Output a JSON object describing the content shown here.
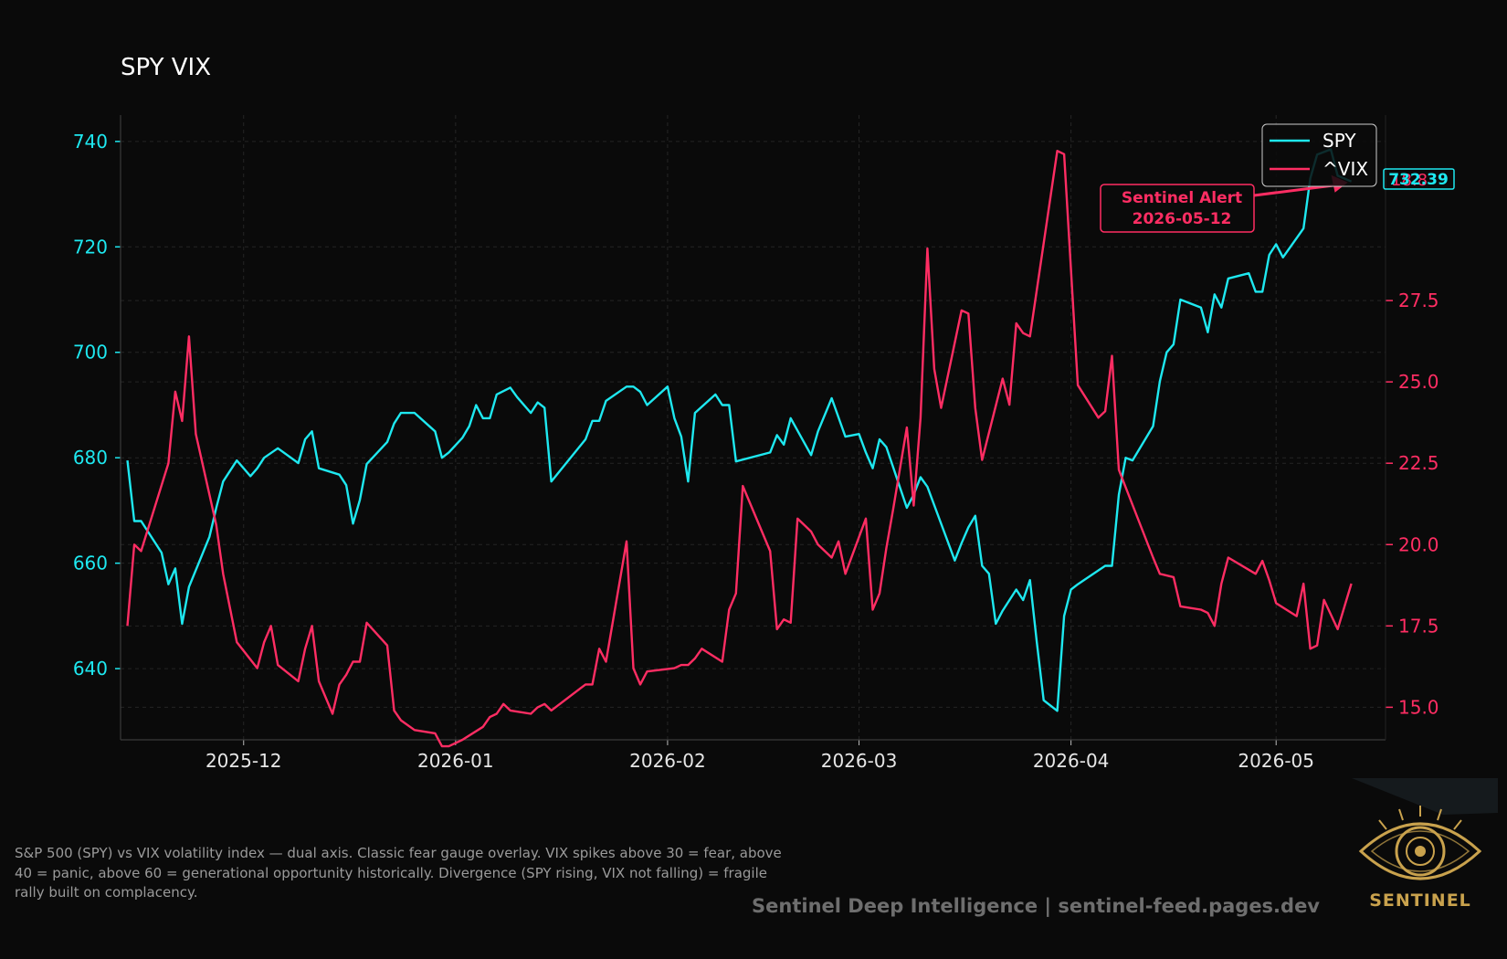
{
  "colors": {
    "background": "#0a0a0a",
    "spy": "#1ee8f0",
    "vix": "#ff2d63",
    "grid": "#252525",
    "text": "#e6e6e6",
    "logo_gold": "#c9a24d"
  },
  "chart_data": {
    "type": "line",
    "title": "SPY VIX",
    "dual_axis": true,
    "legend_position": "top-right",
    "grid": true,
    "x_ticks": [
      "2025-12",
      "2026-01",
      "2026-02",
      "2026-03",
      "2026-04",
      "2026-05"
    ],
    "xlim": [
      "2025-11-13",
      "2026-05-17"
    ],
    "y_left": {
      "color": "#1ee8f0",
      "ylim": [
        626.5,
        745
      ],
      "ticks": [
        640,
        660,
        680,
        700,
        720,
        740
      ]
    },
    "y_right": {
      "color": "#ff2d63",
      "ylim": [
        14.0,
        33.2
      ],
      "ticks": [
        "15.0",
        "17.5",
        "20.0",
        "22.5",
        "25.0",
        "27.5"
      ]
    },
    "series": [
      {
        "name": "SPY",
        "axis": "left",
        "color": "#1ee8f0",
        "last_value_label": "732.39",
        "x": [
          "2025-11-14",
          "2025-11-15",
          "2025-11-16",
          "2025-11-19",
          "2025-11-20",
          "2025-11-21",
          "2025-11-22",
          "2025-11-23",
          "2025-11-26",
          "2025-11-27",
          "2025-11-28",
          "2025-11-30",
          "2025-12-02",
          "2025-12-03",
          "2025-12-04",
          "2025-12-06",
          "2025-12-09",
          "2025-12-10",
          "2025-12-11",
          "2025-12-12",
          "2025-12-15",
          "2025-12-16",
          "2025-12-17",
          "2025-12-18",
          "2025-12-19",
          "2025-12-22",
          "2025-12-23",
          "2025-12-24",
          "2025-12-26",
          "2025-12-29",
          "2025-12-30",
          "2025-12-31",
          "2026-01-02",
          "2026-01-03",
          "2026-01-04",
          "2026-01-05",
          "2026-01-06",
          "2026-01-07",
          "2026-01-09",
          "2026-01-10",
          "2026-01-12",
          "2026-01-13",
          "2026-01-14",
          "2026-01-15",
          "2026-01-20",
          "2026-01-21",
          "2026-01-22",
          "2026-01-23",
          "2026-01-26",
          "2026-01-27",
          "2026-01-28",
          "2026-01-29",
          "2026-02-01",
          "2026-02-02",
          "2026-02-03",
          "2026-02-04",
          "2026-02-05",
          "2026-02-08",
          "2026-02-09",
          "2026-02-10",
          "2026-02-11",
          "2026-02-16",
          "2026-02-17",
          "2026-02-18",
          "2026-02-19",
          "2026-02-22",
          "2026-02-23",
          "2026-02-25",
          "2026-02-27",
          "2026-03-01",
          "2026-03-02",
          "2026-03-03",
          "2026-03-04",
          "2026-03-05",
          "2026-03-08",
          "2026-03-09",
          "2026-03-10",
          "2026-03-11",
          "2026-03-14",
          "2026-03-15",
          "2026-03-16",
          "2026-03-17",
          "2026-03-18",
          "2026-03-19",
          "2026-03-20",
          "2026-03-21",
          "2026-03-22",
          "2026-03-24",
          "2026-03-25",
          "2026-03-26",
          "2026-03-27",
          "2026-03-28",
          "2026-03-30",
          "2026-03-31",
          "2026-04-01",
          "2026-04-02",
          "2026-04-06",
          "2026-04-07",
          "2026-04-08",
          "2026-04-09",
          "2026-04-10",
          "2026-04-13",
          "2026-04-14",
          "2026-04-15",
          "2026-04-16",
          "2026-04-17",
          "2026-04-20",
          "2026-04-21",
          "2026-04-22",
          "2026-04-23",
          "2026-04-24",
          "2026-04-27",
          "2026-04-28",
          "2026-04-29",
          "2026-04-30",
          "2026-05-01",
          "2026-05-02",
          "2026-05-05",
          "2026-05-06",
          "2026-05-07",
          "2026-05-09",
          "2026-05-10",
          "2026-05-12"
        ],
        "y": [
          679.5,
          668.0,
          668.0,
          662.0,
          656.0,
          659.0,
          648.5,
          655.5,
          665.0,
          670.5,
          675.5,
          679.5,
          676.5,
          678.0,
          680.0,
          681.8,
          679.0,
          683.5,
          685.0,
          678.0,
          676.8,
          674.8,
          667.5,
          672.0,
          678.8,
          683.0,
          686.5,
          688.5,
          688.5,
          685.0,
          680.0,
          681.0,
          683.8,
          686.0,
          690.0,
          687.5,
          687.5,
          692.0,
          693.3,
          691.5,
          688.5,
          690.5,
          689.5,
          675.5,
          683.5,
          687.0,
          687.0,
          690.8,
          693.5,
          693.5,
          692.5,
          690.0,
          693.5,
          687.5,
          684.0,
          675.5,
          688.5,
          692.0,
          690.0,
          690.0,
          679.3,
          681.0,
          684.3,
          682.5,
          687.5,
          680.5,
          685.0,
          691.3,
          684.0,
          684.5,
          681.0,
          678.0,
          683.5,
          682.0,
          670.5,
          673.0,
          676.3,
          674.5,
          664.0,
          660.5,
          663.8,
          666.8,
          669.0,
          659.5,
          658.0,
          648.5,
          651.0,
          655.0,
          653.0,
          656.8,
          645.0,
          634.0,
          632.0,
          650.0,
          655.0,
          656.0,
          659.5,
          659.5,
          673.0,
          680.0,
          679.5,
          686.0,
          694.5,
          700.0,
          701.5,
          710.0,
          708.5,
          703.8,
          711.0,
          708.5,
          714.0,
          715.0,
          711.5,
          711.5,
          718.5,
          720.5,
          718.0,
          723.5,
          733.0,
          737.5,
          738.5,
          733.5,
          732.4
        ]
      },
      {
        "name": "^VIX",
        "axis": "right",
        "color": "#ff2d63",
        "last_value_label": "18.8",
        "x": [
          "2025-11-14",
          "2025-11-15",
          "2025-11-16",
          "2025-11-20",
          "2025-11-21",
          "2025-11-22",
          "2025-11-23",
          "2025-11-24",
          "2025-11-27",
          "2025-11-28",
          "2025-11-30",
          "2025-12-03",
          "2025-12-04",
          "2025-12-05",
          "2025-12-06",
          "2025-12-09",
          "2025-12-10",
          "2025-12-11",
          "2025-12-12",
          "2025-12-14",
          "2025-12-15",
          "2025-12-16",
          "2025-12-17",
          "2025-12-18",
          "2025-12-19",
          "2025-12-22",
          "2025-12-23",
          "2025-12-24",
          "2025-12-26",
          "2025-12-29",
          "2025-12-30",
          "2025-12-31",
          "2026-01-02",
          "2026-01-05",
          "2026-01-06",
          "2026-01-07",
          "2026-01-08",
          "2026-01-09",
          "2026-01-12",
          "2026-01-13",
          "2026-01-14",
          "2026-01-15",
          "2026-01-20",
          "2026-01-21",
          "2026-01-22",
          "2026-01-23",
          "2026-01-26",
          "2026-01-27",
          "2026-01-28",
          "2026-01-29",
          "2026-02-02",
          "2026-02-03",
          "2026-02-04",
          "2026-02-05",
          "2026-02-06",
          "2026-02-09",
          "2026-02-10",
          "2026-02-11",
          "2026-02-12",
          "2026-02-16",
          "2026-02-17",
          "2026-02-18",
          "2026-02-19",
          "2026-02-20",
          "2026-02-22",
          "2026-02-23",
          "2026-02-25",
          "2026-02-26",
          "2026-02-27",
          "2026-03-02",
          "2026-03-03",
          "2026-03-04",
          "2026-03-05",
          "2026-03-06",
          "2026-03-08",
          "2026-03-09",
          "2026-03-10",
          "2026-03-11",
          "2026-03-12",
          "2026-03-13",
          "2026-03-16",
          "2026-03-17",
          "2026-03-18",
          "2026-03-19",
          "2026-03-22",
          "2026-03-23",
          "2026-03-24",
          "2026-03-25",
          "2026-03-26",
          "2026-03-30",
          "2026-03-31",
          "2026-04-02",
          "2026-04-05",
          "2026-04-06",
          "2026-04-07",
          "2026-04-08",
          "2026-04-13",
          "2026-04-14",
          "2026-04-16",
          "2026-04-17",
          "2026-04-20",
          "2026-04-21",
          "2026-04-22",
          "2026-04-23",
          "2026-04-24",
          "2026-04-28",
          "2026-04-29",
          "2026-04-30",
          "2026-05-01",
          "2026-05-04",
          "2026-05-05",
          "2026-05-06",
          "2026-05-07",
          "2026-05-08",
          "2026-05-10",
          "2026-05-12"
        ],
        "y": [
          17.5,
          20.0,
          19.8,
          22.5,
          24.7,
          23.8,
          26.4,
          23.4,
          20.6,
          19.1,
          17.0,
          16.2,
          17.0,
          17.5,
          16.3,
          15.8,
          16.8,
          17.5,
          15.8,
          14.8,
          15.7,
          16.0,
          16.4,
          16.4,
          17.6,
          16.9,
          14.9,
          14.6,
          14.3,
          14.2,
          13.8,
          13.8,
          14.0,
          14.4,
          14.7,
          14.8,
          15.1,
          14.9,
          14.8,
          15.0,
          15.1,
          14.9,
          15.7,
          15.7,
          16.8,
          16.4,
          20.1,
          16.2,
          15.7,
          16.1,
          16.2,
          16.3,
          16.3,
          16.5,
          16.8,
          16.4,
          18.0,
          18.5,
          21.8,
          19.8,
          17.4,
          17.7,
          17.6,
          20.8,
          20.4,
          20.0,
          19.6,
          20.1,
          19.1,
          20.8,
          18.0,
          18.5,
          19.9,
          21.1,
          23.6,
          21.2,
          23.9,
          29.1,
          25.4,
          24.2,
          27.2,
          27.1,
          24.2,
          22.6,
          25.1,
          24.3,
          26.8,
          26.5,
          26.4,
          32.1,
          32.0,
          24.9,
          23.9,
          24.1,
          25.8,
          22.3,
          19.6,
          19.1,
          19.0,
          18.1,
          18.0,
          17.9,
          17.5,
          18.8,
          19.6,
          19.1,
          19.5,
          18.9,
          18.2,
          17.8,
          18.8,
          16.8,
          16.9,
          18.3,
          17.4,
          18.8
        ]
      }
    ],
    "annotation": {
      "text_line1": "Sentinel Alert",
      "text_line2": "2026-05-12",
      "target_x": "2026-05-12",
      "target_series": "SPY"
    }
  },
  "caption": "S&P 500 (SPY) vs VIX volatility index — dual axis. Classic fear gauge overlay. VIX spikes above 30 = fear, above 40 = panic, above 60 = generational opportunity historically. Divergence (SPY rising, VIX not falling) = fragile rally built on complacency.",
  "footer": "Sentinel Deep Intelligence  |  sentinel-feed.pages.dev",
  "logo": {
    "icon": "eye-logo-icon",
    "text": "SENTINEL"
  }
}
